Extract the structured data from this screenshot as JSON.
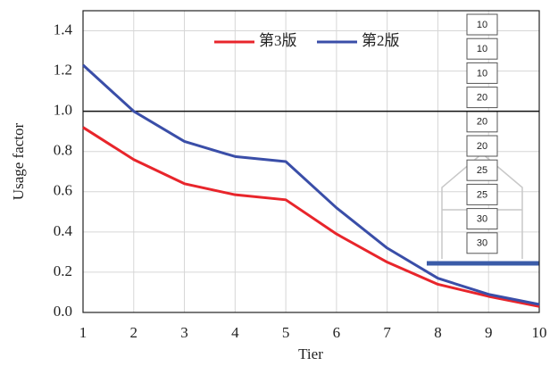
{
  "chart_data": {
    "type": "line",
    "x_label": "Tier",
    "y_label": "Usage factor",
    "x": [
      1,
      2,
      3,
      4,
      5,
      6,
      7,
      8,
      9,
      10
    ],
    "series": [
      {
        "name": "第3版",
        "color": "#e8252b",
        "values": [
          0.92,
          0.76,
          0.64,
          0.585,
          0.56,
          0.39,
          0.25,
          0.14,
          0.08,
          0.03
        ]
      },
      {
        "name": "第2版",
        "color": "#3a4ea8",
        "values": [
          1.23,
          1.0,
          0.85,
          0.775,
          0.75,
          0.52,
          0.32,
          0.17,
          0.09,
          0.04
        ]
      }
    ],
    "xlim": [
      1,
      10
    ],
    "xticks": [
      1,
      2,
      3,
      4,
      5,
      6,
      7,
      8,
      9,
      10
    ],
    "ylim": [
      0,
      1.5
    ],
    "yticks": [
      {
        "value": 0,
        "label": "0.0"
      },
      0.2,
      0.4,
      0.6,
      0.8,
      {
        "value": 1,
        "label": "1.0"
      },
      1.2,
      1.4
    ],
    "reference_line": 1.0,
    "grid": true,
    "legend": "top",
    "inset_labels": [
      10,
      10,
      10,
      20,
      20,
      20,
      25,
      25,
      30,
      30
    ]
  }
}
